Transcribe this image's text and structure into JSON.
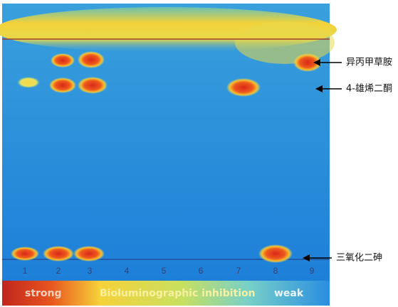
{
  "plate": {
    "lanes": [
      "1",
      "2",
      "3",
      "4",
      "5",
      "6",
      "7",
      "8",
      "9"
    ]
  },
  "annotations": [
    "异丙甲草胺",
    "4-雄烯二酮",
    "三氧化二砷"
  ],
  "scale_bar": {
    "strong": "strong",
    "middle": "Bioluminographic inhibition",
    "weak": "weak"
  }
}
